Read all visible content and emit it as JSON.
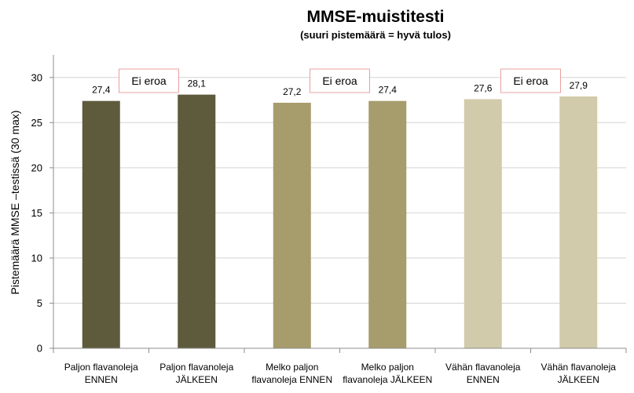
{
  "chart_data": {
    "type": "bar",
    "title": "MMSE-muistitesti",
    "subtitle": "(suuri pistemäärä = hyvä tulos)",
    "ylabel": "Pistemäärä MMSE –testissä (30 max)",
    "xlabel": "",
    "ylim": [
      0,
      32.5
    ],
    "yticks": [
      0,
      5,
      10,
      15,
      20,
      25,
      30
    ],
    "grid": true,
    "categories": [
      [
        "Paljon flavanoleja",
        "ENNEN"
      ],
      [
        "Paljon flavanoleja",
        "JÄLKEEN"
      ],
      [
        "Melko paljon",
        "flavanoleja ENNEN"
      ],
      [
        "Melko paljon",
        "flavanoleja JÄLKEEN"
      ],
      [
        "Vähän flavanoleja",
        "ENNEN"
      ],
      [
        "Vähän flavanoleja",
        "JÄLKEEN"
      ]
    ],
    "values": [
      27.4,
      28.1,
      27.2,
      27.4,
      27.6,
      27.9
    ],
    "value_labels": [
      "27,4",
      "28,1",
      "27,2",
      "27,4",
      "27,6",
      "27,9"
    ],
    "bar_colors": [
      "#5e5a3c",
      "#5e5a3c",
      "#a79c6c",
      "#a79c6c",
      "#d1cbab",
      "#d1cbab"
    ],
    "annotations": [
      {
        "text": "Ei eroa",
        "between": [
          0,
          1
        ]
      },
      {
        "text": "Ei eroa",
        "between": [
          2,
          3
        ]
      },
      {
        "text": "Ei eroa",
        "between": [
          4,
          5
        ]
      }
    ],
    "annotation_border_color": "#e8a0a0"
  }
}
